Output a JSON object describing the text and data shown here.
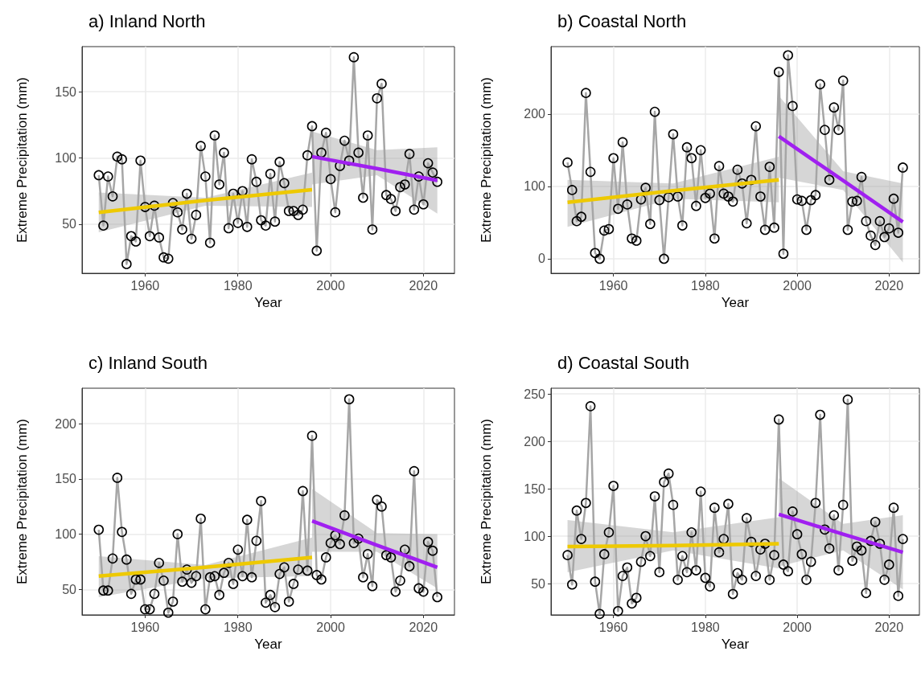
{
  "chart_data": [
    {
      "type": "line",
      "title": "a) Inland North",
      "xlabel": "Year",
      "ylabel": "Extreme Precipitation (mm)",
      "xlim": [
        1946.4,
        2026.7
      ],
      "xticks": [
        1960,
        1980,
        2000,
        2020
      ],
      "ylim": [
        13,
        184
      ],
      "yticks": [
        50,
        100,
        150
      ],
      "grid": true,
      "marker": "circle",
      "x": [
        1950,
        1951,
        1952,
        1953,
        1954,
        1955,
        1956,
        1957,
        1958,
        1959,
        1960,
        1961,
        1962,
        1963,
        1964,
        1965,
        1966,
        1967,
        1968,
        1969,
        1970,
        1971,
        1972,
        1973,
        1974,
        1975,
        1976,
        1977,
        1978,
        1979,
        1980,
        1981,
        1982,
        1983,
        1984,
        1985,
        1986,
        1987,
        1988,
        1989,
        1990,
        1991,
        1992,
        1993,
        1994,
        1995,
        1996,
        1997,
        1998,
        1999,
        2000,
        2001,
        2002,
        2003,
        2004,
        2005,
        2006,
        2007,
        2008,
        2009,
        2010,
        2011,
        2012,
        2013,
        2014,
        2015,
        2016,
        2017,
        2018,
        2019,
        2020,
        2021,
        2022,
        2023
      ],
      "series": [
        {
          "color": "#a6a6a6",
          "values": [
            87,
            49,
            86,
            71,
            101,
            99,
            20,
            41,
            37,
            98,
            63,
            41,
            64,
            40,
            25,
            24,
            66,
            59,
            46,
            73,
            39,
            57,
            109,
            86,
            36,
            117,
            80,
            104,
            47,
            73,
            51,
            75,
            48,
            99,
            82,
            53,
            49,
            88,
            52,
            97,
            81,
            60,
            60,
            57,
            61,
            102,
            124,
            30,
            104,
            119,
            84,
            59,
            94,
            113,
            98,
            176,
            104,
            70,
            117,
            46,
            145,
            156,
            72,
            69,
            60,
            78,
            80,
            103,
            61,
            86,
            65,
            96,
            89,
            82
          ]
        },
        {
          "color": "#eec900",
          "marker": "none",
          "x": [
            1950,
            1973,
            1996
          ],
          "values": [
            59,
            68,
            76
          ],
          "lower": [
            44,
            64,
            63
          ],
          "upper": [
            74,
            70,
            89
          ]
        },
        {
          "color": "#a020f0",
          "marker": "none",
          "x": [
            1996,
            2010,
            2023
          ],
          "values": [
            101,
            92,
            83
          ],
          "lower": [
            80,
            87,
            58
          ],
          "upper": [
            120,
            106,
            108
          ]
        }
      ]
    },
    {
      "type": "line",
      "title": "b) Coastal North",
      "xlabel": "Year",
      "ylabel": "Extreme Precipitation (mm)",
      "xlim": [
        1946.4,
        2026.6
      ],
      "xticks": [
        1960,
        1980,
        2000,
        2020
      ],
      "ylim": [
        -20,
        293
      ],
      "yticks": [
        0,
        100,
        200
      ],
      "grid": true,
      "marker": "circle",
      "x": [
        1950,
        1951,
        1952,
        1953,
        1954,
        1955,
        1956,
        1957,
        1958,
        1959,
        1960,
        1961,
        1962,
        1963,
        1964,
        1965,
        1966,
        1967,
        1968,
        1969,
        1970,
        1971,
        1972,
        1973,
        1974,
        1975,
        1976,
        1977,
        1978,
        1979,
        1980,
        1981,
        1982,
        1983,
        1984,
        1985,
        1986,
        1987,
        1988,
        1989,
        1990,
        1991,
        1992,
        1993,
        1994,
        1995,
        1996,
        1997,
        1998,
        1999,
        2000,
        2001,
        2002,
        2003,
        2004,
        2005,
        2006,
        2007,
        2008,
        2009,
        2010,
        2011,
        2012,
        2013,
        2014,
        2015,
        2016,
        2017,
        2018,
        2019,
        2020,
        2021,
        2022,
        2023
      ],
      "series": [
        {
          "color": "#a6a6a6",
          "values": [
            133,
            95,
            52,
            58,
            229,
            120,
            8,
            0,
            39,
            41,
            139,
            69,
            161,
            75,
            28,
            25,
            82,
            98,
            48,
            203,
            81,
            0,
            85,
            172,
            86,
            46,
            154,
            139,
            73,
            150,
            84,
            90,
            28,
            128,
            90,
            86,
            79,
            123,
            104,
            49,
            109,
            183,
            86,
            40,
            127,
            43,
            258,
            7,
            281,
            211,
            82,
            80,
            40,
            81,
            88,
            241,
            178,
            109,
            209,
            178,
            246,
            40,
            79,
            80,
            113,
            52,
            32,
            19,
            52,
            30,
            42,
            83,
            36,
            126
          ]
        },
        {
          "color": "#eec900",
          "marker": "none",
          "x": [
            1950,
            1973,
            1996
          ],
          "values": [
            78,
            94,
            109
          ],
          "lower": [
            44,
            83,
            78
          ],
          "upper": [
            109,
            104,
            141
          ]
        },
        {
          "color": "#a020f0",
          "marker": "none",
          "x": [
            1996,
            2010,
            2023
          ],
          "values": [
            169,
            108,
            51
          ],
          "lower": [
            112,
            95,
            -5
          ],
          "upper": [
            225,
            121,
            104
          ]
        }
      ]
    },
    {
      "type": "line",
      "title": "c) Inland South",
      "xlabel": "Year",
      "ylabel": "Extreme Precipitation (mm)",
      "xlim": [
        1946.4,
        2026.7
      ],
      "xticks": [
        1960,
        1980,
        2000,
        2020
      ],
      "ylim": [
        27,
        232
      ],
      "yticks": [
        50,
        100,
        150,
        200
      ],
      "grid": true,
      "marker": "circle",
      "x": [
        1950,
        1951,
        1952,
        1953,
        1954,
        1955,
        1956,
        1957,
        1958,
        1959,
        1960,
        1961,
        1962,
        1963,
        1964,
        1965,
        1966,
        1967,
        1968,
        1969,
        1970,
        1971,
        1972,
        1973,
        1974,
        1975,
        1976,
        1977,
        1978,
        1979,
        1980,
        1981,
        1982,
        1983,
        1984,
        1985,
        1986,
        1987,
        1988,
        1989,
        1990,
        1991,
        1992,
        1993,
        1994,
        1995,
        1996,
        1997,
        1998,
        1999,
        2000,
        2001,
        2002,
        2003,
        2004,
        2005,
        2006,
        2007,
        2008,
        2009,
        2010,
        2011,
        2012,
        2013,
        2014,
        2015,
        2016,
        2017,
        2018,
        2019,
        2020,
        2021,
        2022,
        2023
      ],
      "series": [
        {
          "color": "#a6a6a6",
          "values": [
            104,
            49,
            49,
            78,
            151,
            102,
            77,
            46,
            59,
            59,
            32,
            32,
            46,
            74,
            58,
            29,
            39,
            100,
            57,
            68,
            56,
            62,
            114,
            32,
            61,
            62,
            45,
            65,
            74,
            55,
            86,
            62,
            113,
            61,
            94,
            130,
            38,
            45,
            34,
            64,
            70,
            39,
            55,
            68,
            139,
            67,
            189,
            63,
            59,
            79,
            92,
            99,
            91,
            117,
            222,
            92,
            96,
            61,
            82,
            53,
            131,
            125,
            81,
            79,
            48,
            58,
            86,
            71,
            157,
            51,
            48,
            93,
            85,
            43
          ]
        },
        {
          "color": "#eec900",
          "marker": "none",
          "x": [
            1950,
            1973,
            1996
          ],
          "values": [
            62,
            70,
            79
          ],
          "lower": [
            43,
            60,
            62
          ],
          "upper": [
            80,
            72,
            97
          ]
        },
        {
          "color": "#a020f0",
          "marker": "none",
          "x": [
            1996,
            2010,
            2023
          ],
          "values": [
            112,
            90,
            70
          ],
          "lower": [
            84,
            84,
            51
          ],
          "upper": [
            141,
            101,
            100
          ]
        }
      ]
    },
    {
      "type": "line",
      "title": "d) Coastal South",
      "xlabel": "Year",
      "ylabel": "Extreme Precipitation (mm)",
      "xlim": [
        1946.4,
        2026.6
      ],
      "xticks": [
        1960,
        1980,
        2000,
        2020
      ],
      "ylim": [
        17,
        256
      ],
      "yticks": [
        50,
        100,
        150,
        200,
        250
      ],
      "grid": true,
      "marker": "circle",
      "x": [
        1950,
        1951,
        1952,
        1953,
        1954,
        1955,
        1956,
        1957,
        1958,
        1959,
        1960,
        1961,
        1962,
        1963,
        1964,
        1965,
        1966,
        1967,
        1968,
        1969,
        1970,
        1971,
        1972,
        1973,
        1974,
        1975,
        1976,
        1977,
        1978,
        1979,
        1980,
        1981,
        1982,
        1983,
        1984,
        1985,
        1986,
        1987,
        1988,
        1989,
        1990,
        1991,
        1992,
        1993,
        1994,
        1995,
        1996,
        1997,
        1998,
        1999,
        2000,
        2001,
        2002,
        2003,
        2004,
        2005,
        2006,
        2007,
        2008,
        2009,
        2010,
        2011,
        2012,
        2013,
        2014,
        2015,
        2016,
        2017,
        2018,
        2019,
        2020,
        2021,
        2022,
        2023
      ],
      "series": [
        {
          "color": "#a6a6a6",
          "values": [
            80,
            49,
            127,
            97,
            135,
            237,
            52,
            18,
            81,
            104,
            153,
            21,
            58,
            67,
            29,
            35,
            73,
            100,
            79,
            142,
            62,
            157,
            166,
            133,
            54,
            79,
            62,
            104,
            64,
            147,
            56,
            47,
            130,
            83,
            97,
            134,
            39,
            61,
            54,
            119,
            94,
            58,
            86,
            92,
            54,
            80,
            223,
            70,
            63,
            126,
            102,
            81,
            54,
            73,
            135,
            228,
            107,
            87,
            122,
            64,
            133,
            244,
            74,
            89,
            85,
            40,
            95,
            115,
            92,
            54,
            70,
            130,
            37,
            97
          ]
        },
        {
          "color": "#eec900",
          "marker": "none",
          "x": [
            1950,
            1973,
            1996
          ],
          "values": [
            89,
            90,
            92
          ],
          "lower": [
            62,
            85,
            66
          ],
          "upper": [
            117,
            104,
            120
          ]
        },
        {
          "color": "#a020f0",
          "marker": "none",
          "x": [
            1996,
            2010,
            2023
          ],
          "values": [
            123,
            102,
            83
          ],
          "lower": [
            68,
            85,
            44
          ],
          "upper": [
            161,
            113,
            122
          ]
        }
      ]
    }
  ]
}
